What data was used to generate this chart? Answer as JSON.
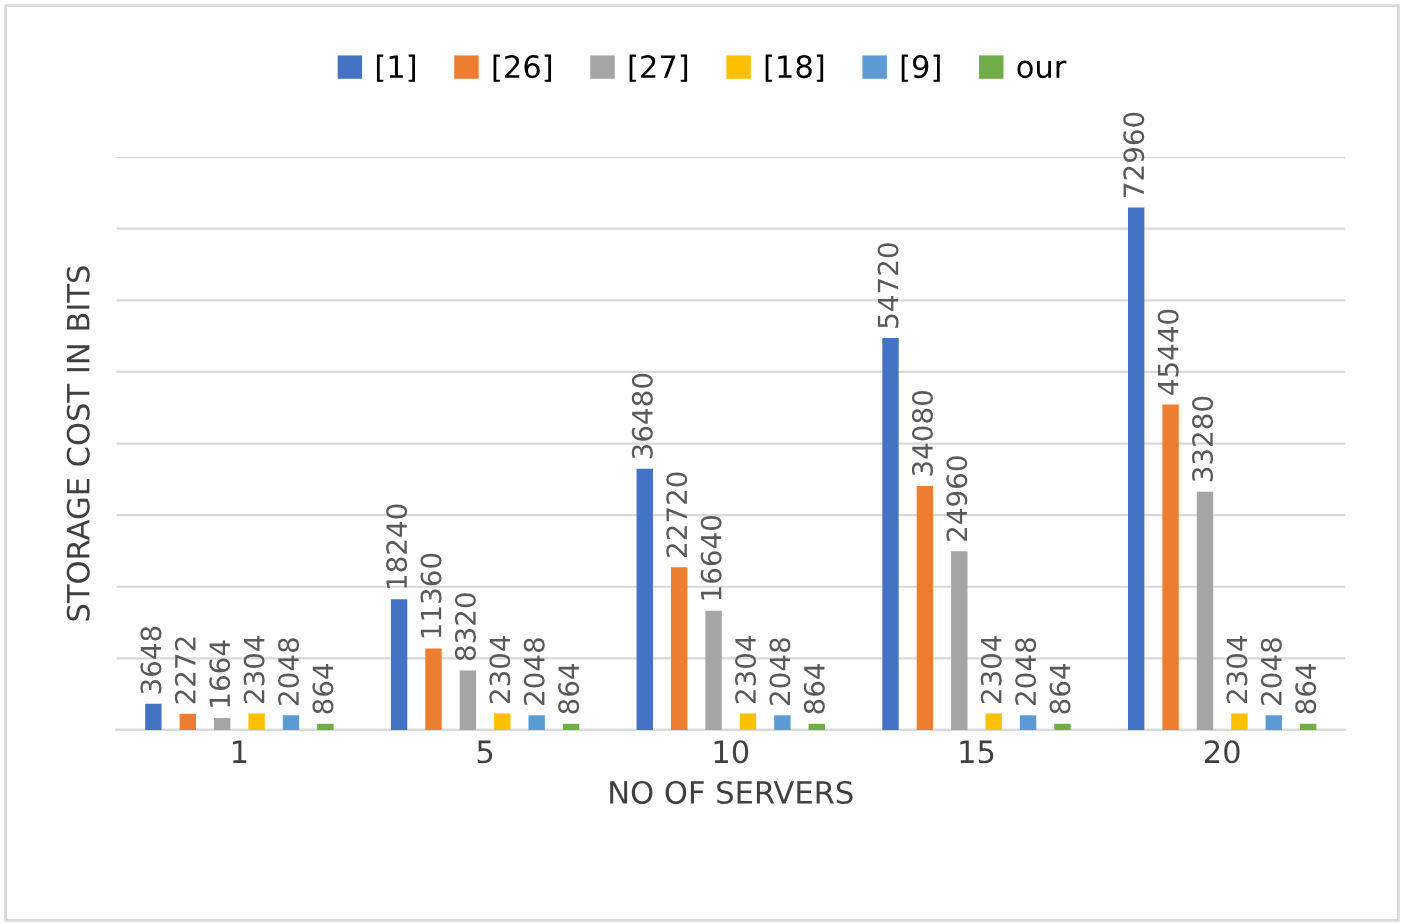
{
  "chart_data": {
    "type": "bar",
    "xlabel": "NO OF SERVERS",
    "ylabel": "STORAGE COST IN BITS",
    "categories": [
      "1",
      "5",
      "10",
      "15",
      "20"
    ],
    "series": [
      {
        "name": "[1]",
        "color": "#4472c4",
        "values": [
          3648,
          18240,
          36480,
          54720,
          72960
        ]
      },
      {
        "name": "[26]",
        "color": "#ed7d31",
        "values": [
          2272,
          11360,
          22720,
          34080,
          45440
        ]
      },
      {
        "name": "[27]",
        "color": "#a5a5a5",
        "values": [
          1664,
          8320,
          16640,
          24960,
          33280
        ]
      },
      {
        "name": "[18]",
        "color": "#ffc000",
        "values": [
          2304,
          2304,
          2304,
          2304,
          2304
        ]
      },
      {
        "name": "[9]",
        "color": "#5b9bd5",
        "values": [
          2048,
          2048,
          2048,
          2048,
          2048
        ]
      },
      {
        "name": "our",
        "color": "#70ad47",
        "values": [
          864,
          864,
          864,
          864,
          864
        ]
      }
    ],
    "ylim": [
      0,
      80000
    ],
    "yticks": [
      {
        "value": 0,
        "label": null
      },
      {
        "value": 10000,
        "label": null
      },
      {
        "value": 20000,
        "label": null
      },
      {
        "value": 30000,
        "label": null
      },
      {
        "value": 40000,
        "label": null
      },
      {
        "value": 50000,
        "label": null
      },
      {
        "value": 60000,
        "label": null
      },
      {
        "value": 70000,
        "label": null
      },
      {
        "value": 80000,
        "label": null
      }
    ],
    "grid": "y",
    "legend": "top",
    "data_labels": true
  }
}
